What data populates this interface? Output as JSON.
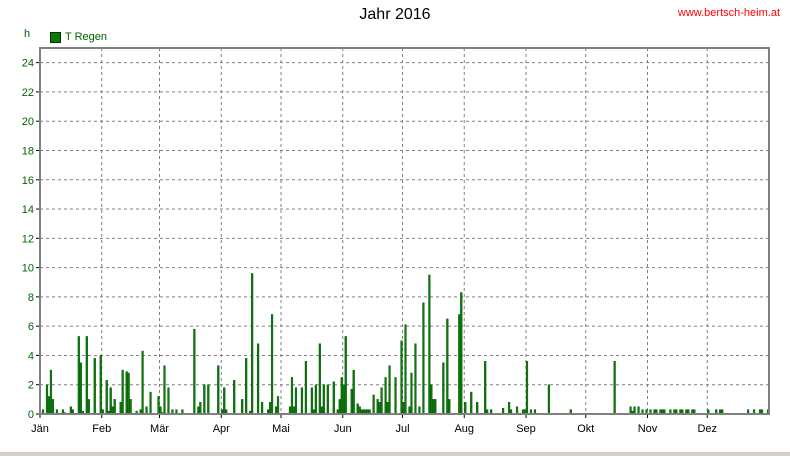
{
  "header": {
    "title": "Jahr 2016",
    "site": "www.bertsch-heim.at",
    "unit": "h"
  },
  "chart_data": {
    "type": "bar",
    "title": "Jahr 2016",
    "ylabel": "h",
    "legend": {
      "label": "T Regen",
      "placement": "top-left"
    },
    "ylim": [
      0,
      25
    ],
    "yticks": [
      0,
      2,
      4,
      6,
      8,
      10,
      12,
      14,
      16,
      18,
      20,
      22,
      24
    ],
    "months": [
      "Jän",
      "Feb",
      "Mär",
      "Apr",
      "Mai",
      "Jun",
      "Jul",
      "Aug",
      "Sep",
      "Okt",
      "Nov",
      "Dez"
    ],
    "grid": true,
    "colors": {
      "bar": "#0a7a0a",
      "bar_edge": "#045004",
      "axis_text": "#006400",
      "grid": "#808080"
    },
    "series": [
      {
        "name": "T Regen",
        "days": [
          2,
          4,
          5,
          6,
          7,
          9,
          12,
          13,
          16,
          17,
          20,
          21,
          22,
          24,
          25,
          28,
          31,
          32,
          34,
          35,
          36,
          37,
          38,
          41,
          42,
          44,
          45,
          46,
          49,
          51,
          52,
          54,
          56,
          60,
          61,
          62,
          63,
          65,
          67,
          69,
          72,
          78,
          80,
          81,
          83,
          85,
          90,
          92,
          93,
          94,
          98,
          102,
          104,
          106,
          107,
          110,
          112,
          115,
          116,
          117,
          119,
          120,
          126,
          127,
          128,
          129,
          132,
          134,
          137,
          138,
          139,
          141,
          142,
          143,
          145,
          148,
          150,
          151,
          152,
          153,
          154,
          157,
          158,
          160,
          161,
          162,
          163,
          164,
          165,
          166,
          168,
          170,
          171,
          172,
          174,
          175,
          176,
          179,
          182,
          183,
          184,
          186,
          187,
          189,
          191,
          193,
          196,
          197,
          198,
          199,
          203,
          205,
          206,
          211,
          212,
          214,
          217,
          220,
          224,
          225,
          227,
          233,
          236,
          237,
          240,
          243,
          244,
          245,
          247,
          249,
          256,
          267,
          289,
          297,
          298,
          299,
          301,
          303,
          305,
          307,
          309,
          310,
          312,
          313,
          314,
          317,
          319,
          320,
          322,
          323,
          325,
          326,
          328,
          329,
          336,
          340,
          342,
          343,
          356,
          359,
          362,
          363,
          366
        ],
        "values": [
          0.3,
          2.0,
          1.2,
          3.0,
          1.0,
          0.3,
          0.3,
          0.1,
          0.5,
          0.3,
          5.3,
          3.5,
          0.2,
          5.3,
          1.0,
          3.8,
          4.0,
          0.3,
          2.3,
          0.2,
          1.8,
          0.5,
          1.0,
          0.8,
          3.0,
          2.9,
          2.8,
          1.0,
          0.2,
          0.3,
          4.3,
          0.5,
          1.5,
          1.2,
          0.5,
          0.1,
          3.3,
          1.8,
          0.3,
          0.3,
          0.3,
          5.8,
          0.5,
          0.8,
          2.0,
          2.0,
          3.3,
          0.3,
          1.8,
          0.3,
          2.3,
          1.0,
          3.8,
          0.2,
          9.6,
          4.8,
          0.8,
          0.3,
          0.8,
          6.8,
          0.5,
          1.2,
          0.5,
          2.5,
          0.5,
          1.8,
          1.8,
          3.6,
          1.8,
          0.3,
          2.0,
          4.8,
          0.5,
          2.0,
          2.0,
          2.2,
          0.3,
          1.0,
          2.5,
          2.0,
          5.3,
          1.7,
          3.0,
          0.7,
          0.5,
          0.3,
          0.3,
          0.3,
          0.3,
          0.3,
          1.3,
          1.0,
          0.8,
          1.8,
          2.5,
          0.8,
          3.3,
          2.5,
          5.0,
          0.8,
          6.1,
          0.5,
          2.8,
          4.8,
          0.5,
          7.6,
          9.5,
          2.0,
          1.0,
          1.0,
          3.5,
          6.5,
          1.0,
          6.8,
          8.3,
          0.8,
          1.5,
          0.8,
          3.6,
          0.3,
          0.3,
          0.4,
          0.8,
          0.3,
          0.5,
          0.3,
          0.3,
          3.6,
          0.3,
          0.3,
          2.0,
          0.3,
          3.6,
          0.5,
          0.2,
          0.5,
          0.5,
          0.3,
          0.3,
          0.3,
          0.3,
          0.3,
          0.3,
          0.3,
          0.3,
          0.3,
          0.3,
          0.3,
          0.3,
          0.3,
          0.3,
          0.3,
          0.3,
          0.3,
          0.3,
          0.3,
          0.3,
          0.3,
          0.3,
          0.3,
          0.3,
          0.3,
          0.3
        ]
      }
    ]
  }
}
